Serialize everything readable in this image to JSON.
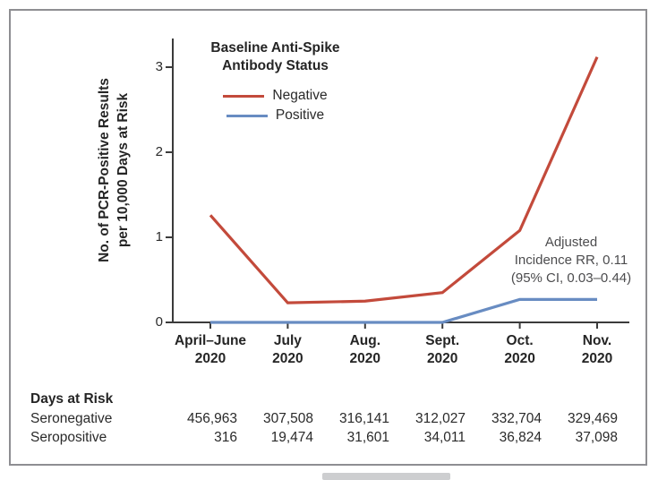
{
  "figure": {
    "legend": {
      "title_lines": [
        "Baseline Anti-Spike",
        "Antibody Status"
      ],
      "items": [
        {
          "label": "Negative",
          "color": "#c34a3b"
        },
        {
          "label": "Positive",
          "color": "#688cc2"
        }
      ]
    },
    "y_axis": {
      "label_lines": [
        "No. of PCR-Positive Results",
        "per 10,000 Days at Risk"
      ],
      "ticks": [
        "0",
        "1",
        "2",
        "3"
      ]
    },
    "x_axis": {
      "year": "2020",
      "months": [
        "April–June",
        "July",
        "Aug.",
        "Sept.",
        "Oct.",
        "Nov."
      ]
    },
    "annotation": {
      "lines": [
        "Adjusted",
        "Incidence RR, 0.11",
        "(95% CI, 0.03–0.44)"
      ]
    },
    "table": {
      "title": "Days at Risk",
      "rows": [
        {
          "label": "Seronegative",
          "values": [
            "456,963",
            "307,508",
            "316,141",
            "312,027",
            "332,704",
            "329,469"
          ]
        },
        {
          "label": "Seropositive",
          "values": [
            "316",
            "19,474",
            "31,601",
            "34,011",
            "36,824",
            "37,098"
          ]
        }
      ]
    }
  },
  "chart_data": {
    "type": "line",
    "title": "Baseline Anti-Spike Antibody Status",
    "categories": [
      "April–June 2020",
      "July 2020",
      "Aug. 2020",
      "Sept. 2020",
      "Oct. 2020",
      "Nov. 2020"
    ],
    "series": [
      {
        "name": "Negative",
        "color": "#c34a3b",
        "values": [
          1.26,
          0.23,
          0.25,
          0.35,
          1.08,
          3.12
        ]
      },
      {
        "name": "Positive",
        "color": "#688cc2",
        "values": [
          0,
          0,
          0,
          0,
          0.27,
          0.27
        ]
      }
    ],
    "xlabel": "",
    "ylabel": "No. of PCR-Positive Results per 10,000 Days at Risk",
    "ylim": [
      0,
      3.33
    ],
    "yticks": [
      0,
      1,
      2,
      3
    ],
    "grid": false,
    "legend_position": "top-left-inside",
    "annotation": "Adjusted Incidence RR, 0.11 (95% CI, 0.03–0.44)"
  },
  "colors": {
    "negative_line": "#c34a3b",
    "positive_line": "#688cc2",
    "axis": "#3b3b3b",
    "border": "#8e8e92",
    "annotation_text": "#4c4c4e",
    "scrollbar": "#cdced0"
  }
}
